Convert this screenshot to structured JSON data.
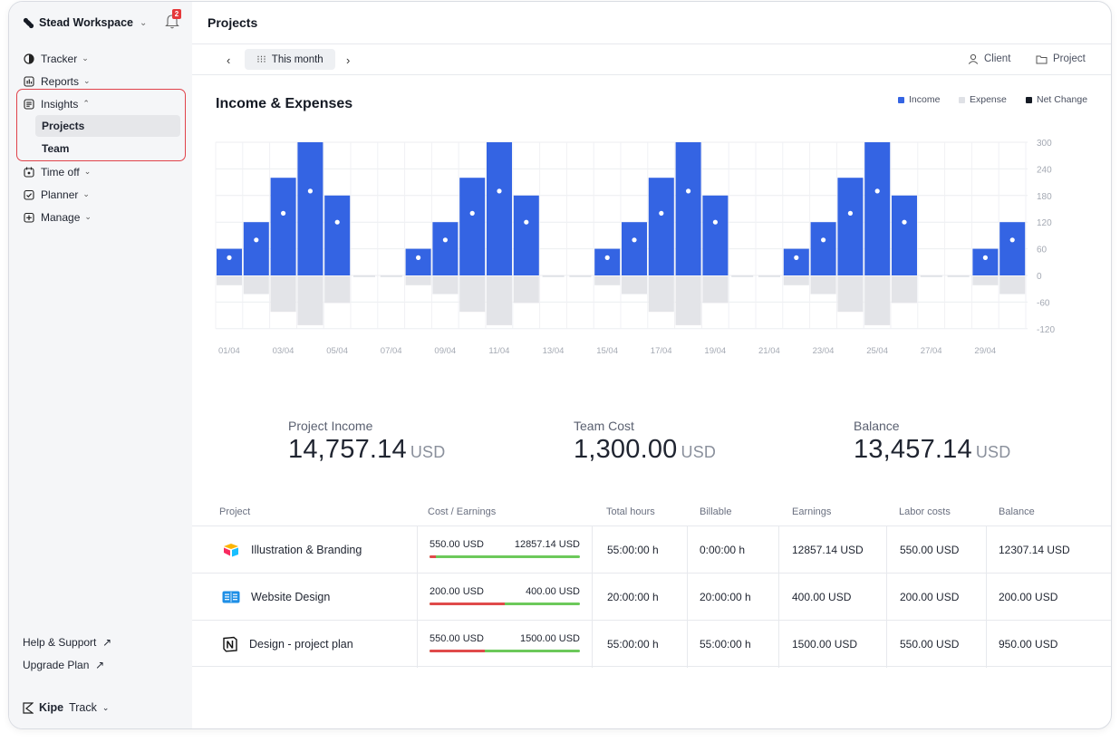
{
  "sidebar": {
    "workspace": "Stead Workspace",
    "notifications": "2",
    "nav": [
      {
        "label": "Tracker",
        "icon": "tracker-icon"
      },
      {
        "label": "Reports",
        "icon": "reports-icon"
      },
      {
        "label": "Insights",
        "icon": "insights-icon"
      },
      {
        "label": "Time off",
        "icon": "time-off-icon"
      },
      {
        "label": "Planner",
        "icon": "planner-icon"
      },
      {
        "label": "Manage",
        "icon": "manage-icon"
      }
    ],
    "insights_sub": [
      "Projects",
      "Team"
    ],
    "help": "Help & Support",
    "upgrade": "Upgrade Plan",
    "brand_bold": "Kipe",
    "brand_rest": "Track"
  },
  "header": {
    "title": "Projects",
    "period": "This month",
    "filter_client": "Client",
    "filter_project": "Project"
  },
  "chart_section": {
    "title": "Income & Expenses",
    "legend": [
      {
        "label": "Income",
        "color": "#3464e3"
      },
      {
        "label": "Expense",
        "color": "#e3e4e8"
      },
      {
        "label": "Net Change",
        "color": "#151a24"
      }
    ]
  },
  "chart_data": {
    "type": "bar",
    "title": "Income & Expenses",
    "x": [
      "01/04",
      "02/04",
      "03/04",
      "04/04",
      "05/04",
      "06/04",
      "07/04",
      "08/04",
      "09/04",
      "10/04",
      "11/04",
      "12/04",
      "13/04",
      "14/04",
      "15/04",
      "16/04",
      "17/04",
      "18/04",
      "19/04",
      "20/04",
      "21/04",
      "22/04",
      "23/04",
      "24/04",
      "25/04",
      "26/04",
      "27/04",
      "28/04",
      "29/04",
      "30/04"
    ],
    "x_tick_labels": [
      "01/04",
      "03/04",
      "05/04",
      "07/04",
      "09/04",
      "11/04",
      "13/04",
      "15/04",
      "17/04",
      "19/04",
      "21/04",
      "23/04",
      "25/04",
      "27/04",
      "29/04"
    ],
    "y_ticks": [
      300,
      240,
      180,
      120,
      60,
      0,
      -60,
      -120
    ],
    "ylim": [
      -120,
      300
    ],
    "series": [
      {
        "name": "Income",
        "values": [
          60,
          120,
          220,
          300,
          180,
          0,
          0,
          60,
          120,
          220,
          300,
          180,
          0,
          0,
          60,
          120,
          220,
          300,
          180,
          0,
          0,
          60,
          120,
          220,
          300,
          180,
          0,
          0,
          60,
          120
        ]
      },
      {
        "name": "Expense",
        "values": [
          -20,
          -40,
          -80,
          -110,
          -60,
          0,
          0,
          -20,
          -40,
          -80,
          -110,
          -60,
          0,
          0,
          -20,
          -40,
          -80,
          -110,
          -60,
          0,
          0,
          -20,
          -40,
          -80,
          -110,
          -60,
          0,
          0,
          -20,
          -40
        ]
      },
      {
        "name": "Net Change",
        "values": [
          40,
          80,
          140,
          190,
          120,
          0,
          0,
          40,
          80,
          140,
          190,
          120,
          0,
          0,
          40,
          80,
          140,
          190,
          120,
          0,
          0,
          40,
          80,
          140,
          190,
          120,
          0,
          0,
          40,
          80
        ]
      }
    ]
  },
  "stats": [
    {
      "label": "Project Income",
      "value": "14,757.14",
      "unit": "USD"
    },
    {
      "label": "Team Cost",
      "value": "1,300.00",
      "unit": "USD"
    },
    {
      "label": "Balance",
      "value": "13,457.14",
      "unit": "USD"
    }
  ],
  "table": {
    "headers": [
      "Project",
      "Cost / Earnings",
      "Total hours",
      "Billable",
      "Earnings",
      "Labor costs",
      "Balance"
    ],
    "rows": [
      {
        "name": "Illustration & Branding",
        "icon": "airtable-logo-icon",
        "cost": "550.00 USD",
        "earn": "12857.14 USD",
        "ratio": 0.043,
        "hours": "55:00:00 h",
        "billable": "0:00:00 h",
        "earnings": "12857.14 USD",
        "labor": "550.00 USD",
        "balance": "12307.14 USD"
      },
      {
        "name": "Website Design",
        "icon": "book-icon",
        "cost": "200.00 USD",
        "earn": "400.00 USD",
        "ratio": 0.5,
        "hours": "20:00:00 h",
        "billable": "20:00:00 h",
        "earnings": "400.00 USD",
        "labor": "200.00 USD",
        "balance": "200.00 USD"
      },
      {
        "name": "Design - project plan",
        "icon": "notion-logo-icon",
        "cost": "550.00 USD",
        "earn": "1500.00 USD",
        "ratio": 0.367,
        "hours": "55:00:00 h",
        "billable": "55:00:00 h",
        "earnings": "1500.00 USD",
        "labor": "550.00 USD",
        "balance": "950.00 USD"
      }
    ]
  }
}
